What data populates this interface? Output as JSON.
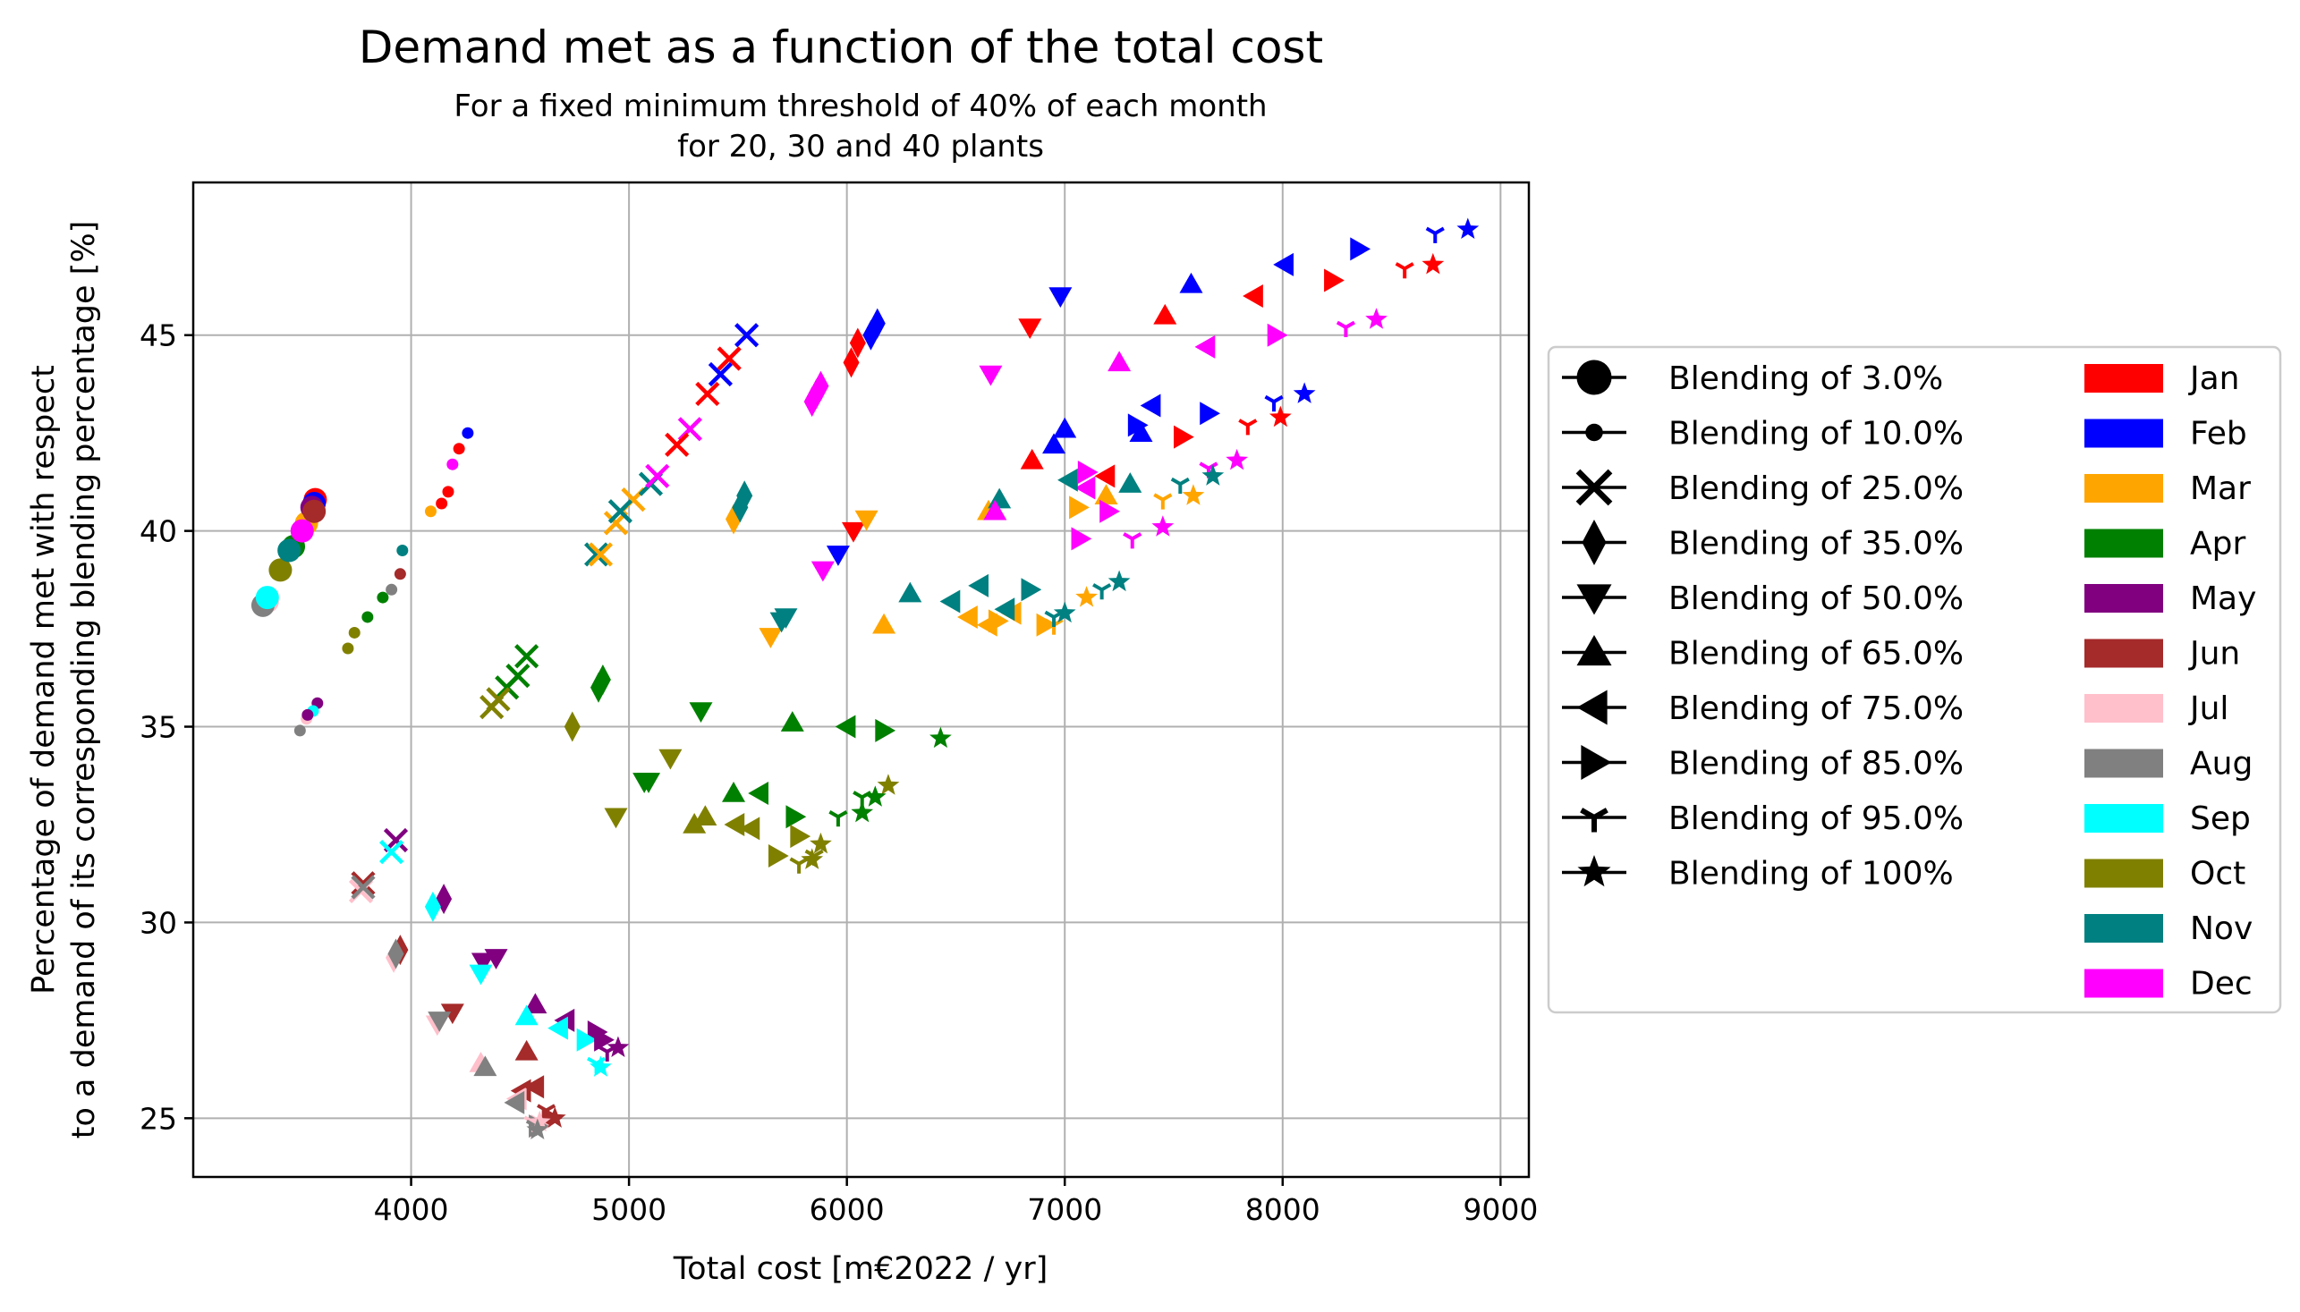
{
  "chart_data": {
    "type": "scatter",
    "title": "Demand met as a function of the total cost",
    "subtitle": [
      "For a fixed minimum threshold of 40% of each month",
      "for 20, 30 and 40 plants"
    ],
    "xlabel": "Total cost [m€2022 / yr]",
    "ylabel": [
      "Percentage of demand met with respect",
      "to a demand of its corresponding blending percentage [%]"
    ],
    "xlim": [
      3000,
      9130
    ],
    "ylim": [
      23.5,
      48.9
    ],
    "xticks": [
      4000,
      5000,
      6000,
      7000,
      8000,
      9000
    ],
    "yticks": [
      25,
      30,
      35,
      40,
      45
    ],
    "grid": true,
    "legend_position": "outside-right",
    "months": [
      "Jan",
      "Feb",
      "Mar",
      "Apr",
      "May",
      "Jun",
      "Jul",
      "Aug",
      "Sep",
      "Oct",
      "Nov",
      "Dec"
    ],
    "month_colors": [
      "#ff0000",
      "#0000ff",
      "#ffa500",
      "#008000",
      "#800080",
      "#a52a2a",
      "#ffc0cb",
      "#808080",
      "#00ffff",
      "#808000",
      "#008080",
      "#ff00ff"
    ],
    "blendings": [
      {
        "label": "Blending of 3.0%",
        "marker": "circle-large"
      },
      {
        "label": "Blending of 10.0%",
        "marker": "circle-small"
      },
      {
        "label": "Blending of 25.0%",
        "marker": "x"
      },
      {
        "label": "Blending of 35.0%",
        "marker": "thin-diamond"
      },
      {
        "label": "Blending of 50.0%",
        "marker": "triangle-down"
      },
      {
        "label": "Blending of 65.0%",
        "marker": "triangle-up"
      },
      {
        "label": "Blending of 75.0%",
        "marker": "triangle-left"
      },
      {
        "label": "Blending of 85.0%",
        "marker": "triangle-right"
      },
      {
        "label": "Blending of 95.0%",
        "marker": "tri-down"
      },
      {
        "label": "Blending of 100%",
        "marker": "star"
      }
    ],
    "series": [
      {
        "blending": 0,
        "points": [
          [
            3560,
            40.8,
            0
          ],
          [
            3555,
            40.7,
            1
          ],
          [
            3520,
            40.2,
            2
          ],
          [
            3460,
            39.6,
            3
          ],
          [
            3545,
            40.6,
            4
          ],
          [
            3555,
            40.5,
            5
          ],
          [
            3340,
            38.2,
            6
          ],
          [
            3320,
            38.1,
            7
          ],
          [
            3340,
            38.3,
            8
          ],
          [
            3400,
            39.0,
            9
          ],
          [
            3440,
            39.5,
            10
          ],
          [
            3500,
            40.0,
            11
          ]
        ]
      },
      {
        "blending": 1,
        "points": [
          [
            4170,
            41.0,
            0
          ],
          [
            4260,
            42.5,
            1
          ],
          [
            4090,
            40.5,
            2
          ],
          [
            3800,
            37.8,
            3
          ],
          [
            3570,
            35.6,
            4
          ],
          [
            3950,
            38.9,
            5
          ],
          [
            3520,
            35.2,
            6
          ],
          [
            3490,
            34.9,
            7
          ],
          [
            3550,
            35.4,
            8
          ],
          [
            3710,
            37.0,
            9
          ],
          [
            3960,
            39.5,
            10
          ],
          [
            4190,
            41.7,
            11
          ],
          [
            3740,
            37.4,
            9
          ],
          [
            4220,
            42.1,
            0
          ],
          [
            3870,
            38.3,
            3
          ],
          [
            3910,
            38.5,
            7
          ],
          [
            4140,
            40.7,
            0
          ],
          [
            3525,
            35.3,
            4
          ]
        ]
      },
      {
        "blending": 2,
        "points": [
          [
            5360,
            43.5,
            0
          ],
          [
            5540,
            45.0,
            1
          ],
          [
            5020,
            40.8,
            2
          ],
          [
            4530,
            36.8,
            3
          ],
          [
            3930,
            32.1,
            4
          ],
          [
            3780,
            31.0,
            5
          ],
          [
            3770,
            30.8,
            6
          ],
          [
            3780,
            30.9,
            7
          ],
          [
            3910,
            31.8,
            8
          ],
          [
            4370,
            35.5,
            9
          ],
          [
            5100,
            41.2,
            10
          ],
          [
            5130,
            41.4,
            11
          ],
          [
            5460,
            44.4,
            0
          ],
          [
            5420,
            44.0,
            1
          ],
          [
            4940,
            40.2,
            2
          ],
          [
            4490,
            36.3,
            3
          ],
          [
            4850,
            39.4,
            10
          ],
          [
            5280,
            42.6,
            11
          ],
          [
            5220,
            42.2,
            0
          ],
          [
            4870,
            39.4,
            2
          ],
          [
            4440,
            36.0,
            3
          ],
          [
            4400,
            35.7,
            9
          ],
          [
            4960,
            40.5,
            10
          ]
        ]
      },
      {
        "blending": 3,
        "points": [
          [
            6050,
            44.8,
            0
          ],
          [
            6140,
            45.3,
            1
          ],
          [
            5480,
            40.3,
            2
          ],
          [
            4860,
            36.0,
            3
          ],
          [
            4150,
            30.6,
            4
          ],
          [
            3950,
            29.3,
            5
          ],
          [
            3920,
            29.1,
            6
          ],
          [
            3930,
            29.2,
            7
          ],
          [
            4100,
            30.4,
            8
          ],
          [
            4740,
            35.0,
            9
          ],
          [
            5530,
            40.9,
            10
          ],
          [
            5880,
            43.7,
            11
          ],
          [
            6020,
            44.3,
            0
          ],
          [
            6110,
            45.0,
            1
          ],
          [
            5510,
            40.6,
            10
          ],
          [
            4880,
            36.2,
            3
          ],
          [
            5840,
            43.3,
            11
          ],
          [
            5860,
            43.5,
            11
          ]
        ]
      },
      {
        "blending": 4,
        "points": [
          [
            6840,
            45.2,
            0
          ],
          [
            6980,
            46.0,
            1
          ],
          [
            5650,
            37.3,
            2
          ],
          [
            5330,
            35.4,
            3
          ],
          [
            4330,
            29.0,
            4
          ],
          [
            4190,
            27.7,
            5
          ],
          [
            4120,
            27.4,
            6
          ],
          [
            4130,
            27.5,
            7
          ],
          [
            4320,
            28.7,
            8
          ],
          [
            4940,
            32.7,
            9
          ],
          [
            5700,
            37.7,
            10
          ],
          [
            6660,
            44.0,
            11
          ],
          [
            6030,
            40.0,
            0
          ],
          [
            5960,
            39.4,
            1
          ],
          [
            6090,
            40.3,
            2
          ],
          [
            5090,
            33.6,
            3
          ],
          [
            4390,
            29.1,
            4
          ],
          [
            5190,
            34.2,
            9
          ],
          [
            5720,
            37.8,
            10
          ],
          [
            5890,
            39.0,
            11
          ],
          [
            5070,
            33.6,
            3
          ]
        ]
      },
      {
        "blending": 5,
        "points": [
          [
            7460,
            45.5,
            0
          ],
          [
            7580,
            46.3,
            1
          ],
          [
            6170,
            37.6,
            2
          ],
          [
            5750,
            35.1,
            3
          ],
          [
            4570,
            27.9,
            4
          ],
          [
            4530,
            26.7,
            5
          ],
          [
            4320,
            26.4,
            6
          ],
          [
            4340,
            26.3,
            7
          ],
          [
            4530,
            27.6,
            8
          ],
          [
            5300,
            32.5,
            9
          ],
          [
            6290,
            38.4,
            10
          ],
          [
            7250,
            44.3,
            11
          ],
          [
            6850,
            41.8,
            0
          ],
          [
            7000,
            42.6,
            1
          ],
          [
            6650,
            40.5,
            2
          ],
          [
            5480,
            33.3,
            3
          ],
          [
            5350,
            32.7,
            9
          ],
          [
            6700,
            40.8,
            10
          ],
          [
            6680,
            40.5,
            11
          ],
          [
            7300,
            41.2,
            10
          ],
          [
            7190,
            40.9,
            2
          ],
          [
            6950,
            42.2,
            1
          ],
          [
            7350,
            42.5,
            1
          ]
        ]
      },
      {
        "blending": 6,
        "points": [
          [
            7870,
            46.0,
            0
          ],
          [
            8010,
            46.8,
            1
          ],
          [
            6560,
            37.8,
            2
          ],
          [
            6000,
            35.0,
            3
          ],
          [
            4710,
            27.5,
            4
          ],
          [
            4510,
            25.7,
            5
          ],
          [
            4490,
            25.5,
            6
          ],
          [
            4480,
            25.4,
            7
          ],
          [
            4680,
            27.3,
            8
          ],
          [
            5490,
            32.5,
            9
          ],
          [
            6610,
            38.6,
            10
          ],
          [
            7650,
            44.7,
            11
          ],
          [
            7190,
            41.4,
            0
          ],
          [
            7400,
            43.2,
            1
          ],
          [
            6760,
            37.9,
            2
          ],
          [
            5600,
            33.3,
            3
          ],
          [
            4570,
            25.8,
            5
          ],
          [
            5560,
            32.4,
            9
          ],
          [
            6480,
            38.2,
            10
          ],
          [
            7100,
            41.1,
            11
          ],
          [
            6650,
            37.6,
            2
          ],
          [
            7020,
            41.3,
            10
          ],
          [
            6730,
            38.0,
            10
          ]
        ]
      },
      {
        "blending": 7,
        "points": [
          [
            8230,
            46.4,
            0
          ],
          [
            8350,
            47.2,
            1
          ],
          [
            6910,
            37.6,
            2
          ],
          [
            6170,
            34.9,
            3
          ],
          [
            4850,
            27.2,
            4
          ],
          [
            4640,
            25.0,
            5
          ],
          [
            4590,
            24.8,
            6
          ],
          [
            4580,
            24.8,
            7
          ],
          [
            4800,
            27.0,
            8
          ],
          [
            5680,
            31.7,
            9
          ],
          [
            6840,
            38.5,
            10
          ],
          [
            7970,
            45.0,
            11
          ],
          [
            7540,
            42.4,
            0
          ],
          [
            7660,
            43.0,
            1
          ],
          [
            7060,
            40.6,
            2
          ],
          [
            5760,
            32.7,
            3
          ],
          [
            4880,
            27.0,
            4
          ],
          [
            5780,
            32.2,
            9
          ],
          [
            7070,
            39.8,
            11
          ],
          [
            7330,
            42.7,
            1
          ],
          [
            6690,
            37.7,
            2
          ],
          [
            7200,
            40.5,
            11
          ],
          [
            7100,
            41.5,
            11
          ]
        ]
      },
      {
        "blending": 8,
        "points": [
          [
            8560,
            46.7,
            0
          ],
          [
            8700,
            47.6,
            1
          ],
          [
            7450,
            40.8,
            2
          ],
          [
            5960,
            32.7,
            3
          ],
          [
            4900,
            26.7,
            4
          ],
          [
            4620,
            25.2,
            5
          ],
          [
            4560,
            24.9,
            6
          ],
          [
            4570,
            24.8,
            7
          ],
          [
            4850,
            26.4,
            8
          ],
          [
            5780,
            31.5,
            9
          ],
          [
            7170,
            38.5,
            10
          ],
          [
            8290,
            45.2,
            11
          ],
          [
            7840,
            42.7,
            0
          ],
          [
            7960,
            43.3,
            1
          ],
          [
            6950,
            37.6,
            2
          ],
          [
            6070,
            33.2,
            3
          ],
          [
            5850,
            31.7,
            9
          ],
          [
            6950,
            37.8,
            10
          ],
          [
            7310,
            39.8,
            11
          ],
          [
            7530,
            41.2,
            10
          ],
          [
            7660,
            41.6,
            11
          ]
        ]
      },
      {
        "blending": 9,
        "points": [
          [
            8690,
            46.8,
            0
          ],
          [
            8850,
            47.7,
            1
          ],
          [
            7590,
            40.9,
            2
          ],
          [
            6430,
            34.7,
            3
          ],
          [
            4950,
            26.8,
            4
          ],
          [
            4660,
            25.0,
            5
          ],
          [
            4590,
            24.9,
            6
          ],
          [
            4580,
            24.7,
            7
          ],
          [
            4870,
            26.3,
            8
          ],
          [
            6190,
            33.5,
            9
          ],
          [
            7250,
            38.7,
            10
          ],
          [
            8430,
            45.4,
            11
          ],
          [
            7990,
            42.9,
            0
          ],
          [
            8100,
            43.5,
            1
          ],
          [
            7100,
            38.3,
            2
          ],
          [
            6130,
            33.2,
            3
          ],
          [
            5880,
            32.0,
            9
          ],
          [
            7000,
            37.9,
            10
          ],
          [
            7450,
            40.1,
            11
          ],
          [
            7680,
            41.4,
            10
          ],
          [
            7790,
            41.8,
            11
          ],
          [
            6070,
            32.8,
            3
          ],
          [
            5840,
            31.6,
            9
          ]
        ]
      }
    ]
  }
}
